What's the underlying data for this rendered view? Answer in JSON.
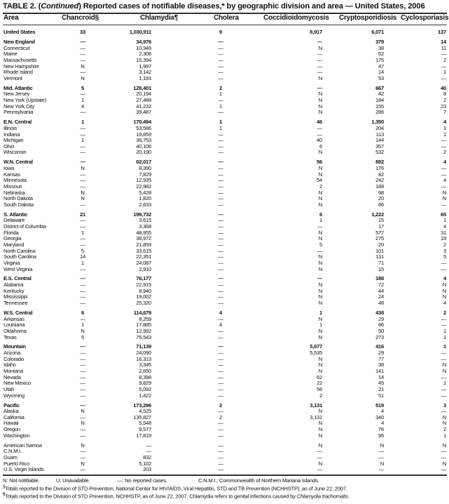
{
  "title": {
    "prefix": "TABLE 2. (",
    "italic": "Continued",
    "suffix": ") Reported cases of notifiable diseases,* by geographic division and area — United States, 2006"
  },
  "columns": [
    "Area",
    "Chancroid§",
    "Chlamydia¶",
    "Cholera",
    "Coccidioidomycosis",
    "Cryptosporidiosis",
    "Cyclosporiasis"
  ],
  "rows": [
    {
      "area": "United States",
      "bold": true,
      "v": [
        "33",
        "1,030,911",
        "9",
        "8,917",
        "6,071",
        "137"
      ]
    },
    {
      "area": "New England",
      "bold": true,
      "gap": true,
      "v": [
        "—",
        "34,976",
        "—",
        "—",
        "379",
        "14"
      ]
    },
    {
      "area": "Connecticut",
      "v": [
        "—",
        "10,946",
        "—",
        "N",
        "38",
        "11"
      ]
    },
    {
      "area": "Maine",
      "v": [
        "—",
        "2,306",
        "—",
        "—",
        "52",
        "—"
      ]
    },
    {
      "area": "Massachusetts",
      "v": [
        "—",
        "15,394",
        "—",
        "—",
        "175",
        "2"
      ]
    },
    {
      "area": "New Hampshire",
      "v": [
        "N",
        "1,997",
        "—",
        "—",
        "47",
        "—"
      ]
    },
    {
      "area": "Rhode Island",
      "v": [
        "—",
        "3,142",
        "—",
        "—",
        "14",
        "1"
      ]
    },
    {
      "area": "Vermont",
      "v": [
        "N",
        "1,191",
        "—",
        "N",
        "53",
        "—"
      ]
    },
    {
      "area": "Mid. Atlantic",
      "bold": true,
      "gap": true,
      "v": [
        "5",
        "128,401",
        "2",
        "—",
        "667",
        "40"
      ]
    },
    {
      "area": "New Jersey",
      "v": [
        "—",
        "20,194",
        "1",
        "N",
        "42",
        "8"
      ]
    },
    {
      "area": "New York (Upstate)",
      "v": [
        "1",
        "27,488",
        "—",
        "N",
        "184",
        "2"
      ]
    },
    {
      "area": "New York City",
      "v": [
        "4",
        "41,232",
        "1",
        "N",
        "155",
        "23"
      ]
    },
    {
      "area": "Pennsylvania",
      "v": [
        "—",
        "39,487",
        "—",
        "N",
        "286",
        "7"
      ]
    },
    {
      "area": "E.N. Central",
      "bold": true,
      "gap": true,
      "v": [
        "1",
        "170,494",
        "1",
        "46",
        "1,350",
        "4"
      ]
    },
    {
      "area": "Illinois",
      "v": [
        "—",
        "53,586",
        "1",
        "—",
        "204",
        "1"
      ]
    },
    {
      "area": "Indiana",
      "v": [
        "—",
        "19,859",
        "—",
        "—",
        "113",
        "1"
      ]
    },
    {
      "area": "Michigan",
      "v": [
        "1",
        "36,753",
        "—",
        "40",
        "144",
        "—"
      ]
    },
    {
      "area": "Ohio",
      "v": [
        "—",
        "40,106",
        "—",
        "6",
        "357",
        "—"
      ]
    },
    {
      "area": "Wisconsin",
      "v": [
        "—",
        "20,190",
        "—",
        "N",
        "532",
        "2"
      ]
    },
    {
      "area": "W.N. Central",
      "bold": true,
      "gap": true,
      "v": [
        "—",
        "62,017",
        "—",
        "56",
        "892",
        "4"
      ]
    },
    {
      "area": "Iowa",
      "v": [
        "N",
        "8,390",
        "—",
        "N",
        "176",
        "—"
      ]
    },
    {
      "area": "Kansas",
      "v": [
        "—",
        "7,829",
        "—",
        "N",
        "82",
        "—"
      ]
    },
    {
      "area": "Minnesota",
      "v": [
        "—",
        "12,935",
        "—",
        "54",
        "242",
        "4"
      ]
    },
    {
      "area": "Missouri",
      "v": [
        "—",
        "22,982",
        "—",
        "2",
        "188",
        "—"
      ]
    },
    {
      "area": "Nebraska",
      "v": [
        "N",
        "5,428",
        "—",
        "N",
        "98",
        "N"
      ]
    },
    {
      "area": "North Dakota",
      "v": [
        "N",
        "1,820",
        "—",
        "N",
        "20",
        "N"
      ]
    },
    {
      "area": "South Dakota",
      "v": [
        "—",
        "2,633",
        "—",
        "N",
        "86",
        "—"
      ]
    },
    {
      "area": "S. Atlantic",
      "bold": true,
      "gap": true,
      "v": [
        "21",
        "199,732",
        "—",
        "6",
        "1,222",
        "65"
      ]
    },
    {
      "area": "Delaware",
      "v": [
        "—",
        "3,615",
        "—",
        "1",
        "15",
        "1"
      ]
    },
    {
      "area": "District of Columbia",
      "v": [
        "—",
        "3,368",
        "—",
        "—",
        "17",
        "4"
      ]
    },
    {
      "area": "Florida",
      "v": [
        "1",
        "48,955",
        "—",
        "N",
        "577",
        "31"
      ]
    },
    {
      "area": "Georgia",
      "v": [
        "—",
        "38,972",
        "—",
        "N",
        "275",
        "19"
      ]
    },
    {
      "area": "Maryland",
      "v": [
        "—",
        "21,859",
        "—",
        "5",
        "20",
        "2"
      ]
    },
    {
      "area": "North Carolina",
      "v": [
        "5",
        "33,615",
        "—",
        "—",
        "101",
        "3"
      ]
    },
    {
      "area": "South Carolina",
      "v": [
        "14",
        "22,351",
        "—",
        "N",
        "131",
        "5"
      ]
    },
    {
      "area": "Virginia",
      "v": [
        "1",
        "24,087",
        "—",
        "N",
        "71",
        "—"
      ]
    },
    {
      "area": "West Virginia",
      "v": [
        "—",
        "2,910",
        "—",
        "N",
        "15",
        "—"
      ]
    },
    {
      "area": "E.S. Central",
      "bold": true,
      "gap": true,
      "v": [
        "—",
        "76,177",
        "—",
        "—",
        "188",
        "4"
      ]
    },
    {
      "area": "Alabama",
      "v": [
        "—",
        "22,915",
        "—",
        "N",
        "72",
        "N"
      ]
    },
    {
      "area": "Kentucky",
      "v": [
        "—",
        "8,940",
        "—",
        "N",
        "44",
        "N"
      ]
    },
    {
      "area": "Mississippi",
      "v": [
        "—",
        "19,002",
        "—",
        "N",
        "24",
        "N"
      ]
    },
    {
      "area": "Tennessee",
      "v": [
        "—",
        "25,320",
        "—",
        "N",
        "48",
        "4"
      ]
    },
    {
      "area": "W.S. Central",
      "bold": true,
      "gap": true,
      "v": [
        "6",
        "114,679",
        "4",
        "1",
        "438",
        "2"
      ]
    },
    {
      "area": "Arkansas",
      "v": [
        "—",
        "8,259",
        "—",
        "N",
        "29",
        "—"
      ]
    },
    {
      "area": "Louisiana",
      "v": [
        "1",
        "17,885",
        "4",
        "1",
        "86",
        "—"
      ]
    },
    {
      "area": "Oklahoma",
      "v": [
        "N",
        "12,992",
        "—",
        "N",
        "50",
        "1"
      ]
    },
    {
      "area": "Texas",
      "v": [
        "5",
        "75,543",
        "—",
        "N",
        "273",
        "1"
      ]
    },
    {
      "area": "Mountain",
      "bold": true,
      "gap": true,
      "v": [
        "—",
        "71,139",
        "—",
        "5,677",
        "416",
        "1"
      ]
    },
    {
      "area": "Arizona",
      "v": [
        "—",
        "24,090",
        "—",
        "5,535",
        "29",
        "—"
      ]
    },
    {
      "area": "Colorado",
      "v": [
        "—",
        "16,313",
        "—",
        "N",
        "77",
        "—"
      ]
    },
    {
      "area": "Idaho",
      "v": [
        "—",
        "3,345",
        "—",
        "N",
        "38",
        "N"
      ]
    },
    {
      "area": "Montana",
      "v": [
        "—",
        "2,650",
        "—",
        "N",
        "141",
        "N"
      ]
    },
    {
      "area": "Nevada",
      "v": [
        "—",
        "8,398",
        "—",
        "62",
        "14",
        "—"
      ]
    },
    {
      "area": "New Mexico",
      "v": [
        "—",
        "9,829",
        "—",
        "22",
        "45",
        "1"
      ]
    },
    {
      "area": "Utah",
      "v": [
        "—",
        "5,092",
        "—",
        "56",
        "21",
        "—"
      ]
    },
    {
      "area": "Wyoming",
      "v": [
        "—",
        "1,422",
        "—",
        "2",
        "51",
        "—"
      ]
    },
    {
      "area": "Pacific",
      "bold": true,
      "gap": true,
      "v": [
        "—",
        "173,296",
        "2",
        "3,131",
        "519",
        "3"
      ]
    },
    {
      "area": "Alaska",
      "v": [
        "N",
        "4,525",
        "—",
        "N",
        "4",
        "—"
      ]
    },
    {
      "area": "California",
      "v": [
        "—",
        "135,827",
        "2",
        "3,131",
        "340",
        "N"
      ]
    },
    {
      "area": "Hawaii",
      "v": [
        "N",
        "5,548",
        "—",
        "N",
        "4",
        "N"
      ]
    },
    {
      "area": "Oregon",
      "v": [
        "—",
        "9,577",
        "—",
        "N",
        "76",
        "2"
      ]
    },
    {
      "area": "Washington",
      "v": [
        "—",
        "17,819",
        "—",
        "N",
        "95",
        "1"
      ]
    },
    {
      "area": "American Samoa",
      "gap": true,
      "v": [
        "N",
        "—",
        "—",
        "N",
        "N",
        "N"
      ]
    },
    {
      "area": "C.N.M.I.",
      "v": [
        "—",
        "—",
        "—",
        "—",
        "—",
        "—"
      ]
    },
    {
      "area": "Guam",
      "v": [
        "—",
        "832",
        "—",
        "—",
        "—",
        "—"
      ]
    },
    {
      "area": "Puerto Rico",
      "v": [
        "N",
        "5,102",
        "—",
        "N",
        "N",
        "N"
      ]
    },
    {
      "area": "U.S. Virgin Islands",
      "v": [
        "—",
        "203",
        "—",
        "—",
        "—",
        "—"
      ]
    }
  ],
  "footnotes": {
    "legend_n": "N: Not notifiable.",
    "legend_u": "U: Unavailable.",
    "legend_dash": "—: No reported cases.",
    "legend_cnmi": "C.N.M.I.: Commonwealth of Northern Mariana Islands.",
    "note1_mark": "§",
    "note1": "Totals reported to the Division of STD Prevention, National Center for HIV/AIDS, Viral Hepatitis, STD and TB Prevention (NCHHSTP), as of June 22, 2007.",
    "note2_mark": "¶",
    "note2_prefix": "Totals reported to the Division of STD Prevention, NCHHSTP, as of June 22, 2007. Chlamydia refers to genital infections caused by ",
    "note2_italic": "Chlamydia trachomatis",
    "note2_suffix": "."
  }
}
